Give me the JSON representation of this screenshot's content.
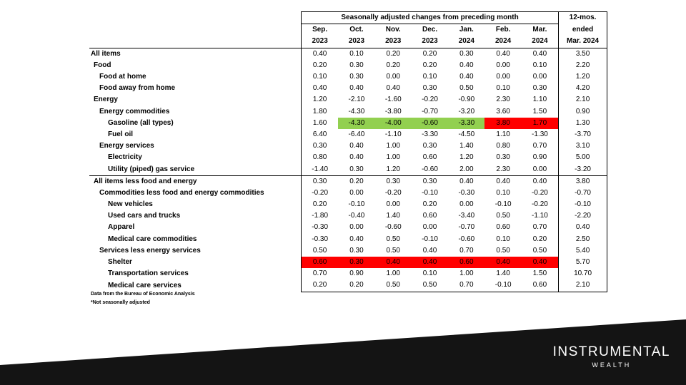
{
  "header": {
    "group_title": "Seasonally adjusted changes from preceding month",
    "months": [
      "Sep.",
      "Oct.",
      "Nov.",
      "Dec.",
      "Jan.",
      "Feb.",
      "Mar."
    ],
    "years": [
      "2023",
      "2023",
      "2023",
      "2023",
      "2024",
      "2024",
      "2024"
    ],
    "col12_line1": "12-mos.",
    "col12_line2": "ended",
    "col12_line3": "Mar. 2024"
  },
  "rows": [
    {
      "label": "All items",
      "level": 0,
      "values": [
        "0.40",
        "0.10",
        "0.20",
        "0.20",
        "0.30",
        "0.40",
        "0.40"
      ],
      "twelve": "3.50",
      "separator": true
    },
    {
      "label": "Food",
      "level": 1,
      "values": [
        "0.20",
        "0.30",
        "0.20",
        "0.20",
        "0.40",
        "0.00",
        "0.10"
      ],
      "twelve": "2.20"
    },
    {
      "label": "Food at home",
      "level": 2,
      "values": [
        "0.10",
        "0.30",
        "0.00",
        "0.10",
        "0.40",
        "0.00",
        "0.00"
      ],
      "twelve": "1.20"
    },
    {
      "label": "Food away from home",
      "level": 2,
      "values": [
        "0.40",
        "0.40",
        "0.40",
        "0.30",
        "0.50",
        "0.10",
        "0.30"
      ],
      "twelve": "4.20"
    },
    {
      "label": "Energy",
      "level": 1,
      "values": [
        "1.20",
        "-2.10",
        "-1.60",
        "-0.20",
        "-0.90",
        "2.30",
        "1.10"
      ],
      "twelve": "2.10"
    },
    {
      "label": "Energy commodities",
      "level": 2,
      "values": [
        "1.80",
        "-4.30",
        "-3.80",
        "-0.70",
        "-3.20",
        "3.60",
        "1.50"
      ],
      "twelve": "0.90"
    },
    {
      "label": "Gasoline (all types)",
      "level": 3,
      "values": [
        "1.60",
        "-4.30",
        "-4.00",
        "-0.60",
        "-3.30",
        "3.80",
        "1.70"
      ],
      "twelve": "1.30",
      "highlight": [
        "",
        "green",
        "green",
        "green",
        "green",
        "red",
        "red"
      ]
    },
    {
      "label": "Fuel oil",
      "level": 3,
      "values": [
        "6.40",
        "-6.40",
        "-1.10",
        "-3.30",
        "-4.50",
        "1.10",
        "-1.30"
      ],
      "twelve": "-3.70"
    },
    {
      "label": "Energy services",
      "level": 2,
      "values": [
        "0.30",
        "0.40",
        "1.00",
        "0.30",
        "1.40",
        "0.80",
        "0.70"
      ],
      "twelve": "3.10"
    },
    {
      "label": "Electricity",
      "level": 3,
      "values": [
        "0.80",
        "0.40",
        "1.00",
        "0.60",
        "1.20",
        "0.30",
        "0.90"
      ],
      "twelve": "5.00"
    },
    {
      "label": "Utility (piped) gas service",
      "level": 3,
      "values": [
        "-1.40",
        "0.30",
        "1.20",
        "-0.60",
        "2.00",
        "2.30",
        "0.00"
      ],
      "twelve": "-3.20"
    },
    {
      "label": "All items less food and energy",
      "level": 1,
      "values": [
        "0.30",
        "0.20",
        "0.30",
        "0.30",
        "0.40",
        "0.40",
        "0.40"
      ],
      "twelve": "3.80",
      "separator": true
    },
    {
      "label": "Commodities less food and energy commodities",
      "level": 2,
      "values": [
        "-0.20",
        "0.00",
        "-0.20",
        "-0.10",
        "-0.30",
        "0.10",
        "-0.20"
      ],
      "twelve": "-0.70"
    },
    {
      "label": "New vehicles",
      "level": 3,
      "values": [
        "0.20",
        "-0.10",
        "0.00",
        "0.20",
        "0.00",
        "-0.10",
        "-0.20"
      ],
      "twelve": "-0.10"
    },
    {
      "label": "Used cars and trucks",
      "level": 3,
      "values": [
        "-1.80",
        "-0.40",
        "1.40",
        "0.60",
        "-3.40",
        "0.50",
        "-1.10"
      ],
      "twelve": "-2.20"
    },
    {
      "label": "Apparel",
      "level": 3,
      "values": [
        "-0.30",
        "0.00",
        "-0.60",
        "0.00",
        "-0.70",
        "0.60",
        "0.70"
      ],
      "twelve": "0.40"
    },
    {
      "label": "Medical care commodities",
      "level": 3,
      "values": [
        "-0.30",
        "0.40",
        "0.50",
        "-0.10",
        "-0.60",
        "0.10",
        "0.20"
      ],
      "twelve": "2.50"
    },
    {
      "label": "Services less energy services",
      "level": 2,
      "values": [
        "0.50",
        "0.30",
        "0.50",
        "0.40",
        "0.70",
        "0.50",
        "0.50"
      ],
      "twelve": "5.40"
    },
    {
      "label": "Shelter",
      "level": 3,
      "values": [
        "0.60",
        "0.30",
        "0.40",
        "0.40",
        "0.60",
        "0.40",
        "0.40"
      ],
      "twelve": "5.70",
      "highlight": [
        "red",
        "red",
        "red",
        "red",
        "red",
        "red",
        "red"
      ]
    },
    {
      "label": "Transportation services",
      "level": 3,
      "values": [
        "0.70",
        "0.90",
        "1.00",
        "0.10",
        "1.00",
        "1.40",
        "1.50"
      ],
      "twelve": "10.70"
    },
    {
      "label": "Medical care services",
      "level": 3,
      "values": [
        "0.20",
        "0.20",
        "0.50",
        "0.50",
        "0.70",
        "-0.10",
        "0.60"
      ],
      "twelve": "2.10"
    }
  ],
  "notes": [
    "Data from the Bureau of Economic Analysis",
    "*Not seasonally adjusted"
  ],
  "logo": {
    "main": "INSTRUMENTAL",
    "sub": "WEALTH"
  },
  "colors": {
    "green": "#92d050",
    "red": "#ff0000",
    "band": "#141414"
  }
}
